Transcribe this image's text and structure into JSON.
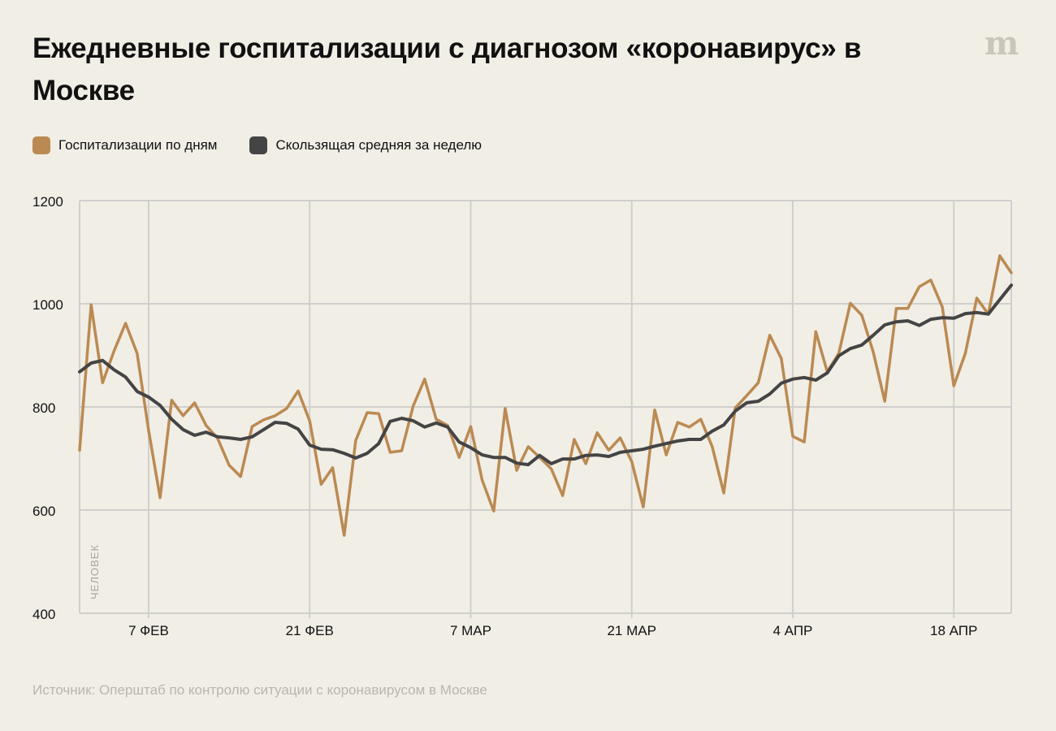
{
  "title": "Ежедневные госпитализации с диагнозом «коронавирус» в Москве",
  "logo": "m",
  "source": "Источник: Оперштаб по контролю ситуации с коронавирусом в Москве",
  "colors": {
    "daily": "#bb8a52",
    "avg": "#444444",
    "grid": "#d0cfcc",
    "bg": "#f1eee6"
  },
  "chart_data": {
    "type": "line",
    "title": "Ежедневные госпитализации с диагнозом «коронавирус» в Москве",
    "ylabel": "ЧЕЛОВЕК",
    "xlabel": "",
    "ylim": [
      400,
      1200
    ],
    "yticks": [
      400,
      600,
      800,
      1000,
      1200
    ],
    "x_start": "1 ФЕВ",
    "xticks": [
      {
        "index": 6,
        "label": "7 ФЕВ"
      },
      {
        "index": 20,
        "label": "21 ФЕВ"
      },
      {
        "index": 34,
        "label": "7 МАР"
      },
      {
        "index": 48,
        "label": "21 МАР"
      },
      {
        "index": 62,
        "label": "4 АПР"
      },
      {
        "index": 76,
        "label": "18 АПР"
      }
    ],
    "grid": true,
    "legend_position": "top-left",
    "series": [
      {
        "name": "Госпитализации по дням",
        "color": "#bb8a52",
        "values": [
          716,
          998,
          847,
          909,
          962,
          904,
          754,
          624,
          813,
          783,
          808,
          764,
          739,
          687,
          665,
          762,
          775,
          783,
          797,
          831,
          773,
          650,
          682,
          551,
          735,
          789,
          787,
          712,
          715,
          802,
          854,
          776,
          764,
          702,
          762,
          658,
          598,
          797,
          677,
          723,
          702,
          680,
          628,
          737,
          690,
          750,
          716,
          740,
          694,
          606,
          794,
          707,
          770,
          761,
          776,
          723,
          633,
          798,
          822,
          847,
          939,
          894,
          743,
          732,
          946,
          868,
          904,
          1001,
          978,
          906,
          811,
          991,
          991,
          1033,
          1046,
          994,
          841,
          904,
          1011,
          980,
          1093,
          1060
        ]
      },
      {
        "name": "Скользящая средняя за неделю",
        "color": "#444444",
        "values": [
          868,
          885,
          890,
          872,
          858,
          830,
          819,
          803,
          776,
          756,
          745,
          751,
          742,
          740,
          737,
          742,
          756,
          770,
          768,
          757,
          726,
          718,
          717,
          710,
          701,
          710,
          729,
          772,
          778,
          773,
          761,
          769,
          761,
          732,
          721,
          707,
          702,
          702,
          691,
          688,
          706,
          690,
          699,
          699,
          706,
          707,
          704,
          712,
          715,
          718,
          724,
          729,
          734,
          737,
          737,
          753,
          765,
          792,
          808,
          811,
          825,
          846,
          854,
          857,
          852,
          866,
          899,
          913,
          920,
          939,
          959,
          965,
          967,
          958,
          970,
          973,
          972,
          981,
          983,
          980,
          1008,
          1036
        ]
      }
    ]
  }
}
